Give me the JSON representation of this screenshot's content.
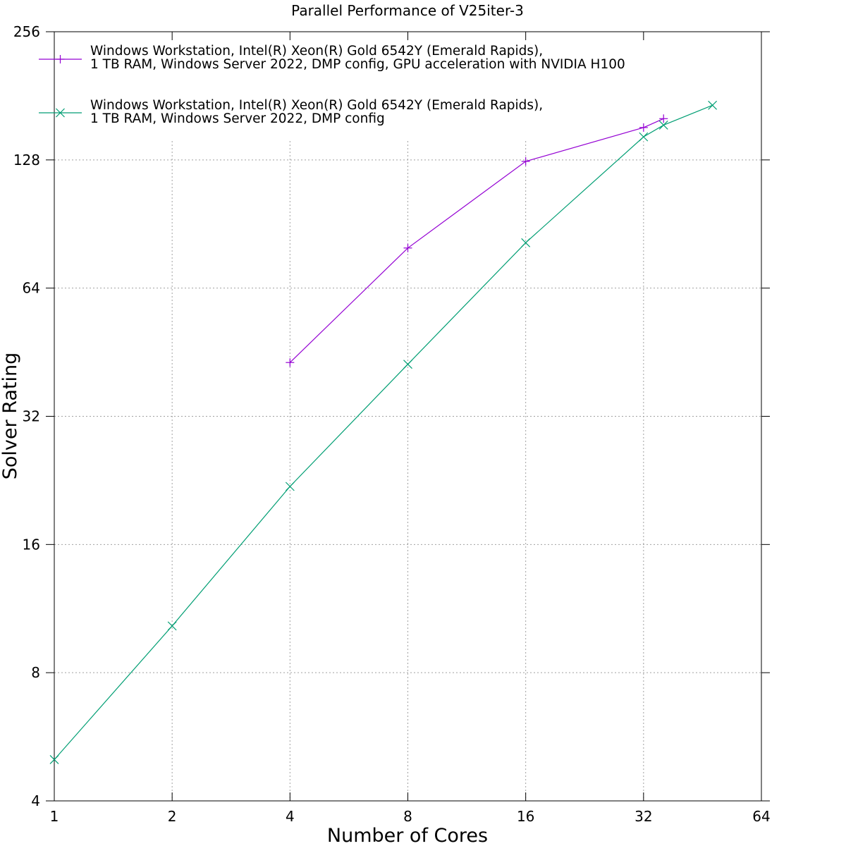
{
  "chart_data": {
    "type": "line",
    "title": "Parallel Performance of V25iter-3",
    "xlabel": "Number of Cores",
    "ylabel": "Solver Rating",
    "x_scale": "log2",
    "y_scale": "log2",
    "xlim": [
      1,
      64
    ],
    "ylim": [
      4,
      256
    ],
    "x_ticks": [
      "1",
      "2",
      "4",
      "8",
      "16",
      "32",
      "64"
    ],
    "y_ticks": [
      "4",
      "8",
      "16",
      "32",
      "64",
      "128",
      "256"
    ],
    "grid": true,
    "legend_position": "top-left",
    "series": [
      {
        "name": "Windows Workstation, Intel(R) Xeon(R) Gold 6542Y (Emerald Rapids),",
        "name_line2": "1 TB RAM, Windows Server 2022, DMP config, GPU acceleration with NVIDIA H100",
        "color": "#9400d3",
        "marker": "plus",
        "x": [
          4,
          8,
          16,
          32,
          36
        ],
        "y": [
          42.8,
          79.5,
          127.0,
          152.5,
          160.0
        ]
      },
      {
        "name": "Windows Workstation, Intel(R) Xeon(R) Gold 6542Y (Emerald Rapids),",
        "name_line2": "1 TB RAM, Windows Server 2022, DMP config",
        "color": "#009e73",
        "marker": "x",
        "x": [
          1,
          2,
          4,
          8,
          16,
          32,
          36,
          48
        ],
        "y": [
          5.0,
          10.3,
          21.9,
          42.4,
          81.8,
          145.0,
          154.5,
          172.0
        ]
      }
    ]
  }
}
